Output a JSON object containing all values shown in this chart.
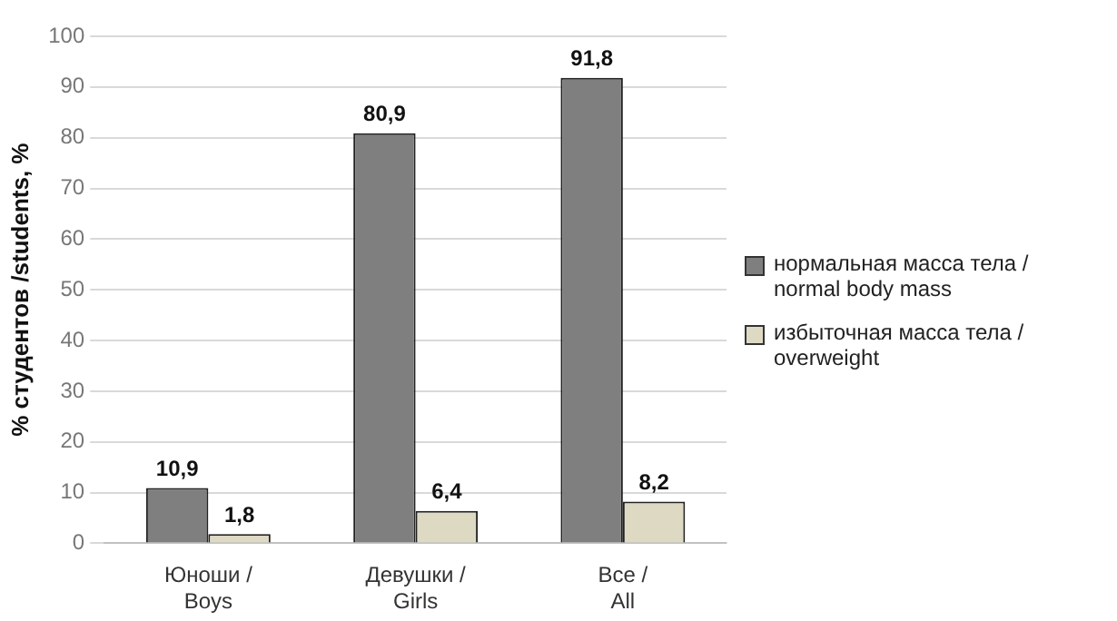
{
  "chart_data": {
    "type": "bar",
    "ylabel": "% студентов /students, %",
    "categories": [
      "Юноши / Boys",
      "Девушки / Girls",
      "Все / All"
    ],
    "series": [
      {
        "name": "нормальная масса тела / normal body mass",
        "color": "#7f7f7f",
        "values": [
          10.9,
          80.9,
          91.8
        ],
        "value_labels": [
          "10,9",
          "80,9",
          "91,8"
        ]
      },
      {
        "name": "избыточная масса тела / overweight",
        "color": "#ddd9c3",
        "values": [
          1.8,
          6.4,
          8.2
        ],
        "value_labels": [
          "1,8",
          "6,4",
          "8,2"
        ]
      }
    ],
    "ylim": [
      0,
      100
    ],
    "yticks": [
      0,
      10,
      20,
      30,
      40,
      50,
      60,
      70,
      80,
      90,
      100
    ],
    "grid": "y",
    "legend": "right"
  }
}
